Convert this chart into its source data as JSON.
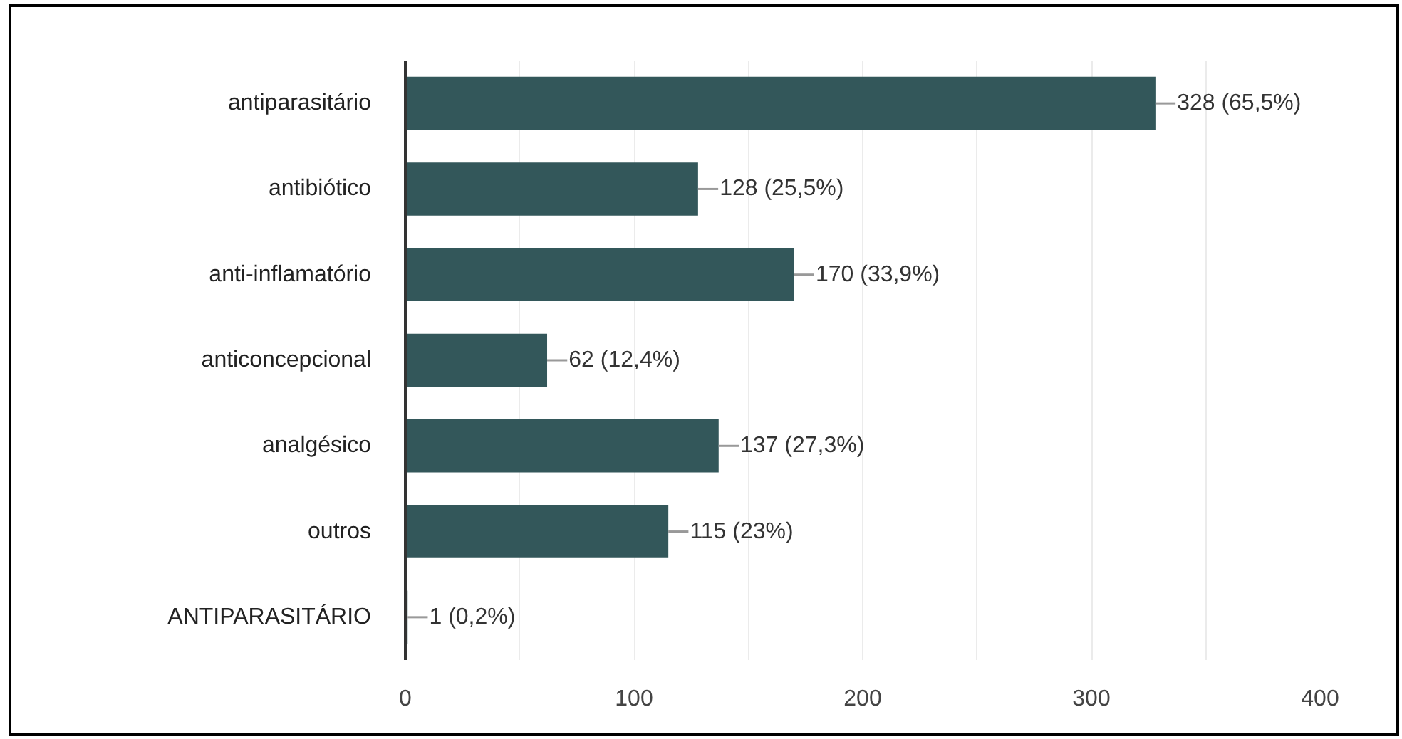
{
  "chart_data": {
    "type": "bar",
    "orientation": "horizontal",
    "categories": [
      "antiparasitário",
      "antibiótico",
      "anti-inflamatório",
      "anticoncepcional",
      "analgésico",
      "outros",
      "ANTIPARASITÁRIO"
    ],
    "values": [
      328,
      128,
      170,
      62,
      137,
      115,
      1
    ],
    "color": "#33575a",
    "value_labels": [
      "328 (65,5%)",
      "128 (25,5%)",
      "170 (33,9%)",
      "62 (12,4%)",
      "137 (27,3%)",
      "115 (23%)",
      "1 (0,2%)"
    ],
    "xlim": [
      0,
      400
    ],
    "xticks": [
      0,
      {
        "value": 50,
        "label": null
      },
      100,
      {
        "value": 150,
        "label": null
      },
      200,
      {
        "value": 250,
        "label": null
      },
      300,
      {
        "value": 350,
        "label": null
      },
      400
    ],
    "grid": "x"
  }
}
